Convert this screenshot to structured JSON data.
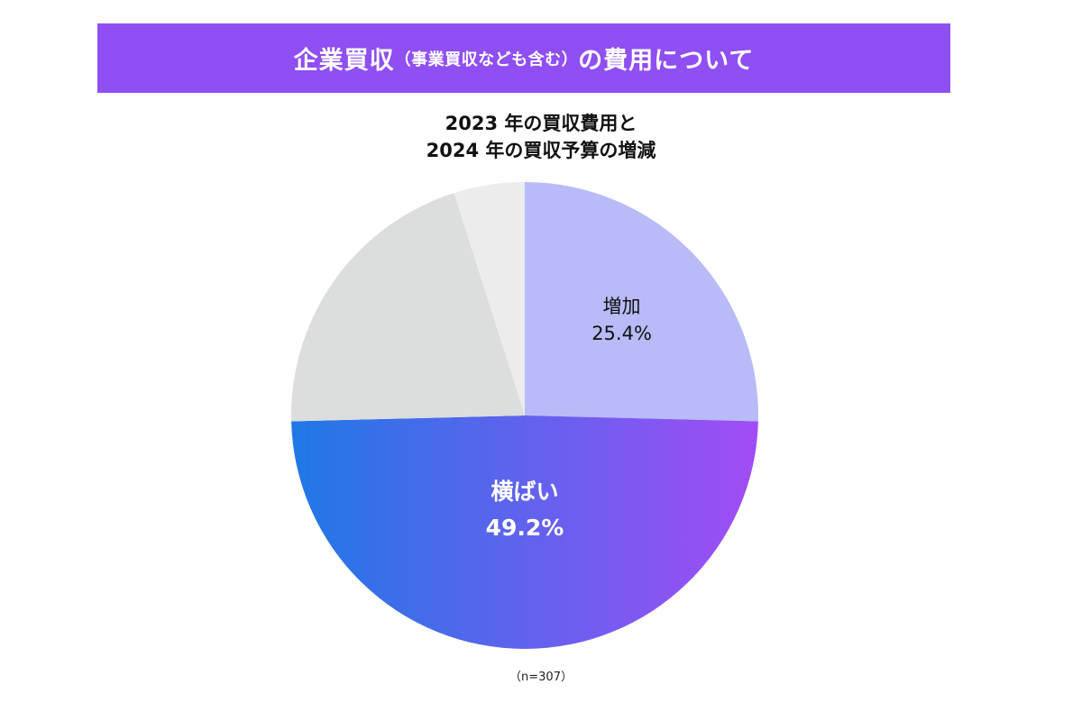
{
  "header": {
    "title_main_1": "企業買収",
    "title_sub": "（事業買収なども含む）",
    "title_main_2": "の費用について"
  },
  "chart_data": {
    "type": "pie",
    "title_lines": [
      "2023 年の買収費用と",
      "2024 年の買収予算の増減"
    ],
    "slices": [
      {
        "name": "増加",
        "value": 25.4,
        "label": "増加",
        "value_text": "25.4%",
        "color": "#b8bbf8",
        "text_color": "#111111"
      },
      {
        "name": "横ばい",
        "value": 49.2,
        "label": "横ばい",
        "value_text": "49.2%",
        "color_start": "#1f78e6",
        "color_end": "#a24cf5",
        "text_color": "#ffffff"
      },
      {
        "name": "",
        "value": 20.5,
        "label": "",
        "value_text": "",
        "color": "#dcdddd"
      },
      {
        "name": "",
        "value": 4.9,
        "label": "",
        "value_text": "",
        "color": "#ececec"
      }
    ],
    "start_angle": "12 o'clock",
    "direction": "clockwise",
    "sample_note": "（n=307）"
  }
}
